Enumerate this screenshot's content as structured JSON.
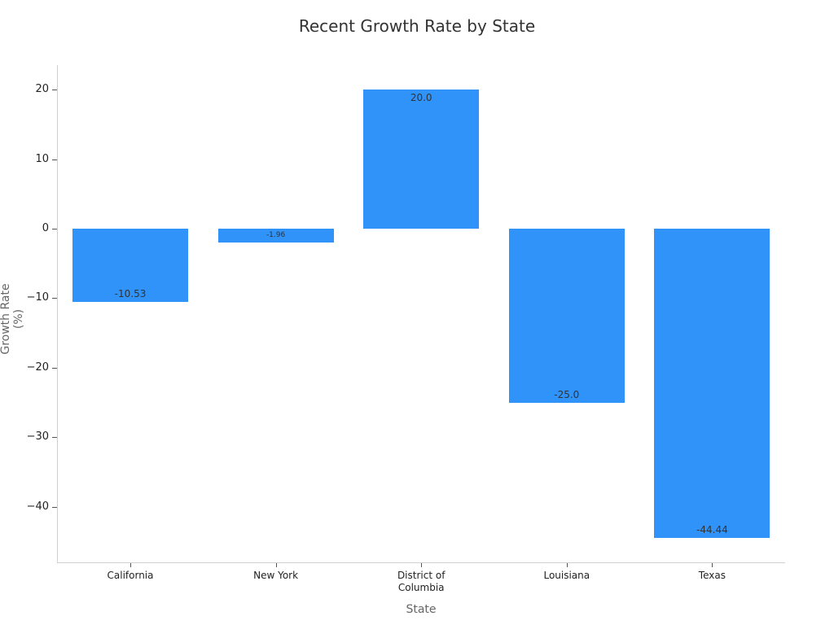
{
  "chart_data": {
    "type": "bar",
    "title": "Recent Growth Rate by State",
    "xlabel": "State",
    "ylabel": "Growth Rate (%)",
    "categories": [
      "California",
      "New York",
      "District of Columbia",
      "Louisiana",
      "Texas"
    ],
    "category_labels": [
      "California",
      "New York",
      "District of\nColumbia",
      "Louisiana",
      "Texas"
    ],
    "values": [
      -10.53,
      -1.96,
      20.0,
      -25.0,
      -44.44
    ],
    "value_labels": [
      "-10.53",
      "-1.96",
      "20.0",
      "-25.0",
      "-44.44"
    ],
    "yticks": [
      20,
      10,
      0,
      -10,
      -20,
      -30,
      -40
    ],
    "ytick_labels": [
      "20",
      "10",
      "0",
      "−10",
      "−20",
      "−30",
      "−40"
    ],
    "ylim": [
      -48,
      23
    ],
    "grid": false,
    "legend": null,
    "bar_color": "#2f93f9"
  }
}
